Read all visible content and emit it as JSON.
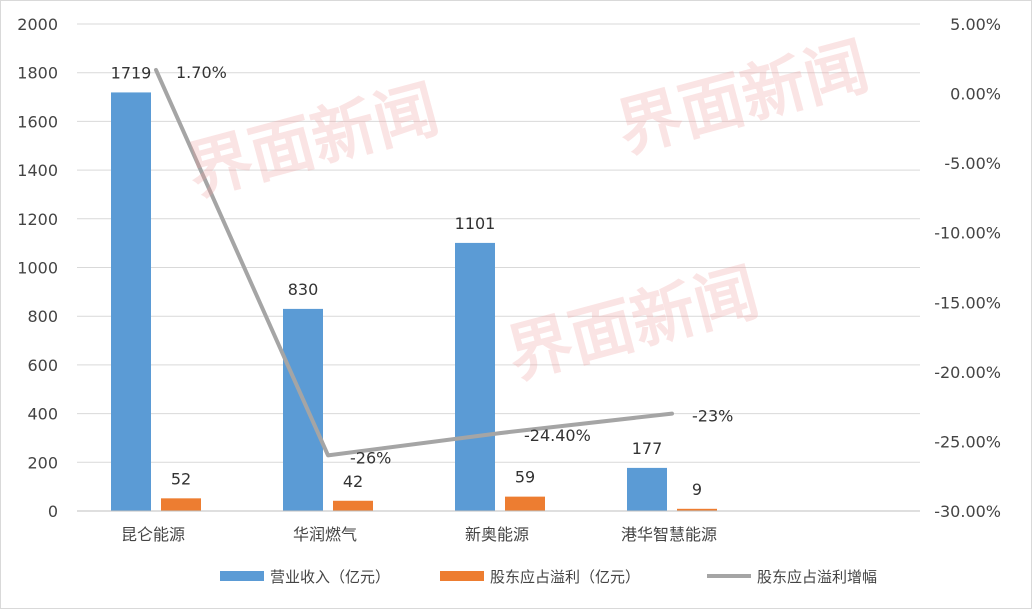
{
  "chart_data": {
    "type": "bar",
    "categories": [
      "昆仑能源",
      "华润燃气",
      "新奥能源",
      "港华智慧能源"
    ],
    "series": [
      {
        "name": "营业收入（亿元）",
        "kind": "bar",
        "axis": "left",
        "color": "#5b9bd5",
        "values": [
          1719,
          830,
          1101,
          177
        ],
        "labels": [
          "1719",
          "830",
          "1101",
          "177"
        ]
      },
      {
        "name": "股东应占溢利（亿元）",
        "kind": "bar",
        "axis": "left",
        "color": "#ed7d31",
        "values": [
          52,
          42,
          59,
          9
        ],
        "labels": [
          "52",
          "42",
          "59",
          "9"
        ]
      },
      {
        "name": "股东应占溢利增幅",
        "kind": "line",
        "axis": "right",
        "color": "#a5a5a5",
        "values": [
          1.7,
          -26,
          -24.4,
          -23
        ],
        "labels": [
          "1.70%",
          "-26%",
          "-24.40%",
          "-23%"
        ]
      }
    ],
    "yleft": {
      "min": 0,
      "max": 2000,
      "step": 200,
      "ticks": [
        "0",
        "200",
        "400",
        "600",
        "800",
        "1000",
        "1200",
        "1400",
        "1600",
        "1800",
        "2000"
      ]
    },
    "yright": {
      "min": -30,
      "max": 5,
      "step": 5,
      "ticks": [
        "-30.00%",
        "-25.00%",
        "-20.00%",
        "-15.00%",
        "-10.00%",
        "-5.00%",
        "0.00%",
        "5.00%"
      ]
    },
    "grid": true,
    "legend": "bottom",
    "watermark": "界面新闻"
  }
}
